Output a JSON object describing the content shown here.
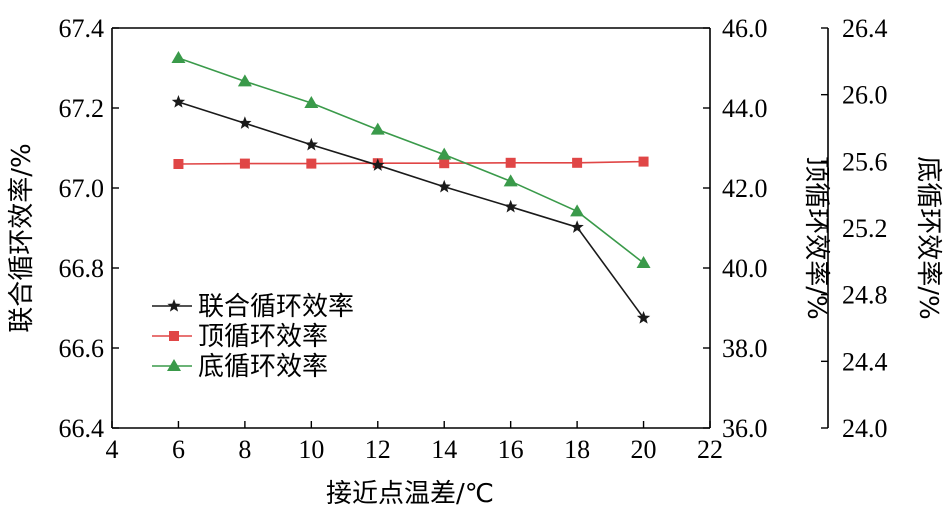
{
  "chart_data": {
    "type": "line",
    "title": "",
    "xlabel": "接近点温差/℃",
    "x": [
      6,
      8,
      10,
      12,
      14,
      16,
      18,
      20
    ],
    "xlim": [
      4,
      22
    ],
    "xticks": [
      "4",
      "6",
      "8",
      "10",
      "12",
      "14",
      "16",
      "18",
      "20",
      "22"
    ],
    "axes": [
      {
        "label": "联合循环效率/%",
        "position": "left",
        "lim": [
          66.4,
          67.4
        ],
        "ticks": [
          "66.4",
          "66.6",
          "66.8",
          "67.0",
          "67.2",
          "67.4"
        ]
      },
      {
        "label": "顶循环效率/%",
        "position": "right",
        "lim": [
          36.0,
          46.0
        ],
        "ticks": [
          "36.0",
          "38.0",
          "40.0",
          "42.0",
          "44.0",
          "46.0"
        ]
      },
      {
        "label": "底循环效率/%",
        "position": "right-outer",
        "lim": [
          24.0,
          26.4
        ],
        "ticks": [
          "24.0",
          "24.4",
          "24.8",
          "25.2",
          "25.6",
          "26.0",
          "26.4"
        ]
      }
    ],
    "series": [
      {
        "name": "联合循环效率",
        "axis": 0,
        "marker": "star",
        "color": "#1a1a1a",
        "values": [
          67.215,
          67.162,
          67.108,
          67.057,
          67.003,
          66.953,
          66.902,
          66.675
        ]
      },
      {
        "name": "顶循环效率",
        "axis": 1,
        "marker": "square",
        "color": "#e04646",
        "values": [
          42.6,
          42.61,
          42.61,
          42.62,
          42.62,
          42.63,
          42.63,
          42.66
        ]
      },
      {
        "name": "底循环效率",
        "axis": 2,
        "marker": "triangle",
        "color": "#3a9a4a",
        "values": [
          26.22,
          26.08,
          25.95,
          25.79,
          25.64,
          25.48,
          25.3,
          24.99
        ]
      }
    ],
    "grid": false,
    "legend": "center-left"
  }
}
